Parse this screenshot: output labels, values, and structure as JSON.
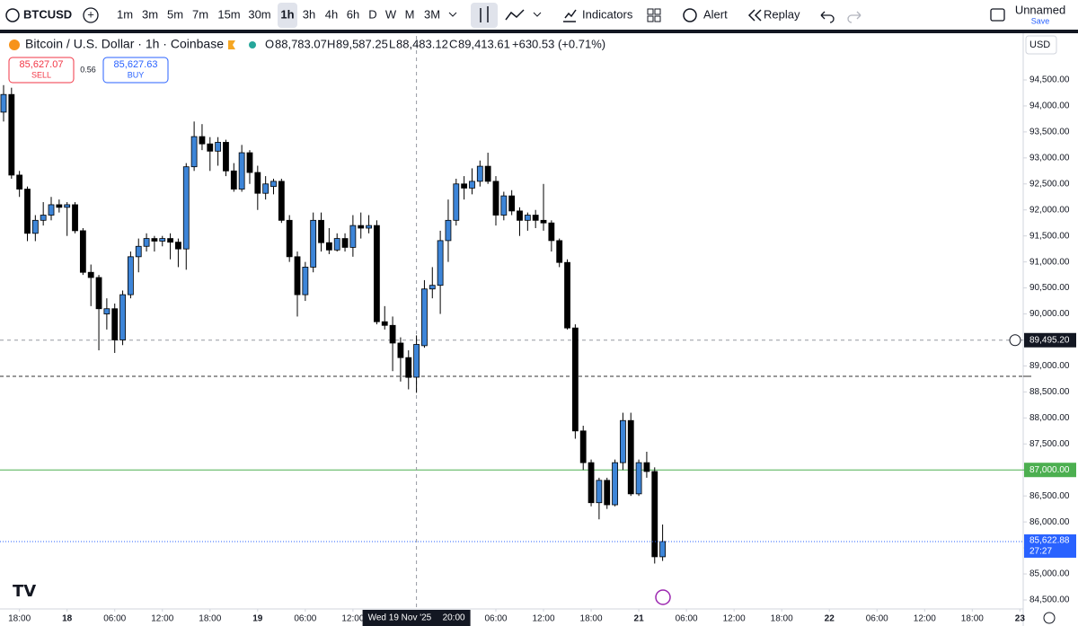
{
  "toolbar": {
    "symbol": "BTCUSD",
    "intervals": [
      "1m",
      "3m",
      "5m",
      "7m",
      "15m",
      "30m",
      "1h",
      "3h",
      "4h",
      "6h",
      "D",
      "W",
      "M",
      "3M"
    ],
    "active_interval": 6,
    "indicators": "Indicators",
    "alert": "Alert",
    "replay": "Replay",
    "layout_name": "Unnamed",
    "save": "Save"
  },
  "legend": {
    "title": "Bitcoin / U.S. Dollar · 1h · Coinbase",
    "o_key": "O",
    "open": "88,783.07",
    "h_key": "H",
    "high": "89,587.25",
    "l_key": "L",
    "low": "88,483.12",
    "c_key": "C",
    "close": "89,413.61",
    "change": "+630.53 (+0.71%)"
  },
  "trade": {
    "sell_price": "85,627.07",
    "sell": "SELL",
    "spread": "0.56",
    "buy_price": "85,627.63",
    "buy": "BUY"
  },
  "currency": "USD",
  "chart_data": {
    "type": "candlestick",
    "up_color": "#3d85d8",
    "down_color": "#000000",
    "open": [
      93880,
      94220,
      92670,
      92400,
      91550,
      91800,
      91900,
      92100,
      92050,
      92100,
      91600,
      90800,
      90700,
      90000,
      90100,
      89500,
      90370,
      91100,
      91300,
      91450,
      91400,
      91450,
      91380,
      91250,
      92830,
      93410,
      93270,
      93130,
      93300,
      92750,
      92400,
      93100,
      92720,
      92320,
      92450,
      92550,
      91800,
      91100,
      90370,
      90900,
      91800,
      91370,
      91230,
      91450,
      91280,
      91700,
      91650,
      91700,
      89850,
      89780,
      89440,
      89160,
      88783.07,
      89390,
      90480,
      90550,
      91410,
      91800,
      92500,
      92420,
      92550,
      92840,
      92550,
      91900,
      92270,
      91980,
      91800,
      91900,
      91800,
      91750,
      91410,
      90990,
      89730,
      87750,
      87140,
      86370,
      86800,
      86330,
      87140,
      87950,
      86540,
      87140,
      86970,
      85330
    ],
    "high": [
      94400,
      94350,
      92750,
      92450,
      91900,
      92150,
      92250,
      92200,
      92150,
      92150,
      91650,
      90950,
      90750,
      90300,
      90200,
      90450,
      91200,
      91450,
      91550,
      91500,
      91500,
      91550,
      91450,
      92900,
      93700,
      93650,
      93400,
      93400,
      93350,
      92900,
      93250,
      93150,
      92850,
      92650,
      92600,
      92600,
      91900,
      91200,
      91000,
      91950,
      91950,
      91650,
      91550,
      91550,
      91900,
      91950,
      91900,
      91800,
      90150,
      89950,
      89550,
      89300,
      89587.25,
      90650,
      90900,
      91600,
      92200,
      92600,
      92650,
      92800,
      92950,
      93100,
      92650,
      92350,
      92380,
      92050,
      91950,
      92000,
      92500,
      91800,
      91450,
      91050,
      89800,
      87850,
      87200,
      86850,
      86850,
      87200,
      88100,
      88100,
      87200,
      87350,
      87050,
      85950
    ],
    "low": [
      93700,
      92600,
      92250,
      91400,
      91400,
      91700,
      91800,
      91950,
      91500,
      91550,
      90750,
      90150,
      89300,
      89700,
      89250,
      89400,
      90300,
      90800,
      91200,
      91200,
      91300,
      91050,
      90900,
      90850,
      92750,
      93150,
      92750,
      92850,
      92650,
      92350,
      92350,
      92500,
      92000,
      92200,
      92300,
      91750,
      91000,
      89950,
      90250,
      90800,
      91200,
      91150,
      91200,
      91200,
      91100,
      91450,
      91550,
      89800,
      89700,
      88900,
      88700,
      88550,
      88483.12,
      89350,
      90300,
      90000,
      91000,
      91700,
      92200,
      92300,
      92450,
      92500,
      91700,
      91800,
      91900,
      91500,
      91600,
      91650,
      91600,
      91200,
      90900,
      89700,
      87600,
      87000,
      86300,
      86050,
      86250,
      86300,
      87000,
      86500,
      86500,
      86850,
      85200,
      85250
    ],
    "close": [
      94220,
      92670,
      92400,
      91550,
      91800,
      91900,
      92100,
      92050,
      92100,
      91600,
      90800,
      90700,
      90100,
      90100,
      89500,
      90370,
      91100,
      91300,
      91450,
      91400,
      91450,
      91380,
      91250,
      92830,
      93410,
      93270,
      93130,
      93300,
      92750,
      92400,
      93100,
      92720,
      92320,
      92500,
      92550,
      91800,
      91100,
      90370,
      90900,
      91800,
      91370,
      91230,
      91450,
      91280,
      91700,
      91650,
      91700,
      89850,
      89780,
      89440,
      89160,
      88780,
      89413.61,
      90480,
      90550,
      91410,
      91800,
      92500,
      92420,
      92550,
      92840,
      92550,
      91900,
      92270,
      91980,
      91800,
      91900,
      91800,
      91750,
      91410,
      90990,
      89730,
      87750,
      87140,
      86370,
      86800,
      86330,
      87140,
      87950,
      86540,
      87140,
      86970,
      85330,
      85622.88
    ],
    "xlim": [
      -0.45,
      128.3
    ],
    "xticks": [
      {
        "value": 2,
        "label": "18:00"
      },
      {
        "value": 8,
        "label": "18"
      },
      {
        "value": 14,
        "label": "06:00"
      },
      {
        "value": 20,
        "label": "12:00"
      },
      {
        "value": 26,
        "label": "18:00"
      },
      {
        "value": 32,
        "label": "19"
      },
      {
        "value": 38,
        "label": "06:00"
      },
      {
        "value": 44,
        "label": "12:00"
      },
      {
        "value": 62,
        "label": "06:00"
      },
      {
        "value": 68,
        "label": "12:00"
      },
      {
        "value": 74,
        "label": "18:00"
      },
      {
        "value": 80,
        "label": "21"
      },
      {
        "value": 86,
        "label": "06:00"
      },
      {
        "value": 92,
        "label": "12:00"
      },
      {
        "value": 98,
        "label": "18:00"
      },
      {
        "value": 104,
        "label": "22"
      },
      {
        "value": 110,
        "label": "06:00"
      },
      {
        "value": 116,
        "label": "12:00"
      },
      {
        "value": 122,
        "label": "18:00"
      },
      {
        "value": 128,
        "label": "23"
      }
    ],
    "ylim": [
      84327,
      95346
    ],
    "yticks": [
      {
        "value": 84500,
        "label": "84,500.00"
      },
      {
        "value": 85000,
        "label": "85,000.00"
      },
      {
        "value": 85500,
        "label": "85,500.00"
      },
      {
        "value": 86000,
        "label": "86,000.00"
      },
      {
        "value": 86500,
        "label": "86,500.00"
      },
      {
        "value": 87000,
        "label": "87,000.00"
      },
      {
        "value": 87500,
        "label": "87,500.00"
      },
      {
        "value": 88000,
        "label": "88,000.00"
      },
      {
        "value": 88500,
        "label": "88,500.00"
      },
      {
        "value": 89000,
        "label": "89,000.00"
      },
      {
        "value": 89500,
        "label": "89,500.00"
      },
      {
        "value": 90000,
        "label": "90,000.00"
      },
      {
        "value": 90500,
        "label": "90,500.00"
      },
      {
        "value": 91000,
        "label": "91,000.00"
      },
      {
        "value": 91500,
        "label": "91,500.00"
      },
      {
        "value": 92000,
        "label": "92,000.00"
      },
      {
        "value": 92500,
        "label": "92,500.00"
      },
      {
        "value": 93000,
        "label": "93,000.00"
      },
      {
        "value": 93500,
        "label": "93,500.00"
      },
      {
        "value": 94000,
        "label": "94,000.00"
      },
      {
        "value": 94500,
        "label": "94,500.00"
      }
    ],
    "levels": [
      {
        "value": 88800,
        "color": "#333333",
        "dash": true
      },
      {
        "value": 87000,
        "label": "87,000.00",
        "color": "#4caf50",
        "dash": false
      }
    ],
    "last_price": {
      "value": 85622.88,
      "label": "85,622.88",
      "countdown": "27:27",
      "color": "#2962ff"
    },
    "crosshair": {
      "x": 52,
      "x_label": "Wed 19 Nov '25",
      "x_time": "20:00",
      "y": 89495.2,
      "y_label": "89,495.20"
    }
  }
}
